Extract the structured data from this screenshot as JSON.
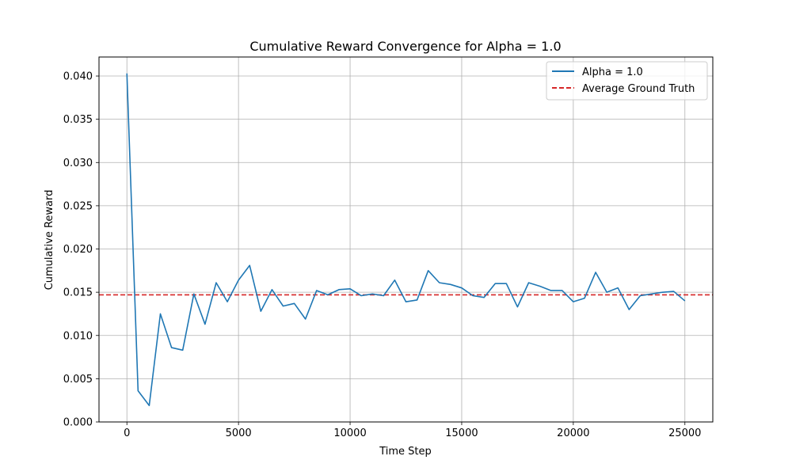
{
  "chart_data": {
    "type": "line",
    "title": "Cumulative Reward Convergence for Alpha = 1.0",
    "xlabel": "Time Step",
    "ylabel": "Cumulative Reward",
    "xlim": [
      -1250,
      26250
    ],
    "ylim": [
      0,
      0.0422
    ],
    "x_ticks": [
      0,
      5000,
      10000,
      15000,
      20000,
      25000
    ],
    "x_tick_labels": [
      "0",
      "5000",
      "10000",
      "15000",
      "20000",
      "25000"
    ],
    "y_ticks": [
      0,
      0.005,
      0.01,
      0.015,
      0.02,
      0.025,
      0.03,
      0.035,
      0.04
    ],
    "y_tick_labels": [
      "0.000",
      "0.005",
      "0.010",
      "0.015",
      "0.020",
      "0.025",
      "0.030",
      "0.035",
      "0.040"
    ],
    "grid": true,
    "legend_position": "top-right",
    "series": [
      {
        "name": "Alpha = 1.0",
        "color": "#1f77b4",
        "style": "solid",
        "x": [
          0,
          500,
          1000,
          1500,
          2000,
          2500,
          3000,
          3500,
          4000,
          4500,
          5000,
          5500,
          6000,
          6500,
          7000,
          7500,
          8000,
          8500,
          9000,
          9500,
          10000,
          10500,
          11000,
          11500,
          12000,
          12500,
          13000,
          13500,
          14000,
          14500,
          15000,
          15500,
          16000,
          16500,
          17000,
          17500,
          18000,
          18500,
          19000,
          19500,
          20000,
          20500,
          21000,
          21500,
          22000,
          22500,
          23000,
          23500,
          24000,
          24500,
          25000
        ],
        "y": [
          0.0403,
          0.0036,
          0.0019,
          0.0125,
          0.0086,
          0.0083,
          0.0148,
          0.0113,
          0.0161,
          0.0139,
          0.0164,
          0.0181,
          0.0128,
          0.0153,
          0.0134,
          0.0137,
          0.0119,
          0.0152,
          0.0147,
          0.0153,
          0.0154,
          0.0146,
          0.0148,
          0.0146,
          0.0164,
          0.0139,
          0.0141,
          0.0175,
          0.0161,
          0.0159,
          0.0155,
          0.0146,
          0.0144,
          0.016,
          0.016,
          0.0133,
          0.0161,
          0.0157,
          0.0152,
          0.0152,
          0.0139,
          0.0143,
          0.0173,
          0.015,
          0.0155,
          0.013,
          0.0146,
          0.0148,
          0.015,
          0.0151,
          0.014
        ]
      },
      {
        "name": "Average Ground Truth",
        "color": "#d62728",
        "style": "dashed",
        "type": "hline",
        "y_value": 0.0147
      }
    ]
  }
}
